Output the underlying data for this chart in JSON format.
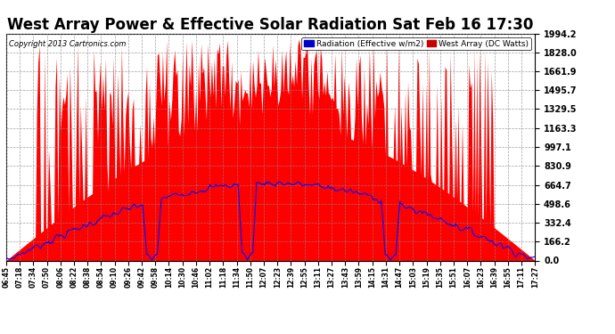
{
  "title": "West Array Power & Effective Solar Radiation Sat Feb 16 17:30",
  "copyright": "Copyright 2013 Cartronics.com",
  "legend_radiation": "Radiation (Effective w/m2)",
  "legend_west": "West Array (DC Watts)",
  "ymax": 1994.2,
  "yticks": [
    0.0,
    166.2,
    332.4,
    498.6,
    664.7,
    830.9,
    997.1,
    1163.3,
    1329.5,
    1495.7,
    1661.9,
    1828.0,
    1994.2
  ],
  "ytick_labels": [
    "0.0",
    "166.2",
    "332.4",
    "498.6",
    "664.7",
    "830.9",
    "997.1",
    "1163.3",
    "1329.5",
    "1495.7",
    "1661.9",
    "1828.0",
    "1994.2"
  ],
  "background_color": "#ffffff",
  "plot_background": "#ffffff",
  "grid_color": "#aaaaaa",
  "fill_color_red": "#ff0000",
  "line_color_blue": "#0000ff",
  "title_fontsize": 12,
  "xtick_labels": [
    "06:45",
    "07:18",
    "07:34",
    "07:50",
    "08:06",
    "08:22",
    "08:38",
    "08:54",
    "09:10",
    "09:26",
    "09:42",
    "09:58",
    "10:14",
    "10:30",
    "10:46",
    "11:02",
    "11:18",
    "11:34",
    "11:50",
    "12:07",
    "12:23",
    "12:39",
    "12:55",
    "13:11",
    "13:27",
    "13:43",
    "13:59",
    "14:15",
    "14:31",
    "14:47",
    "15:03",
    "15:19",
    "15:35",
    "15:51",
    "16:07",
    "16:23",
    "16:39",
    "16:55",
    "17:11",
    "17:27"
  ]
}
